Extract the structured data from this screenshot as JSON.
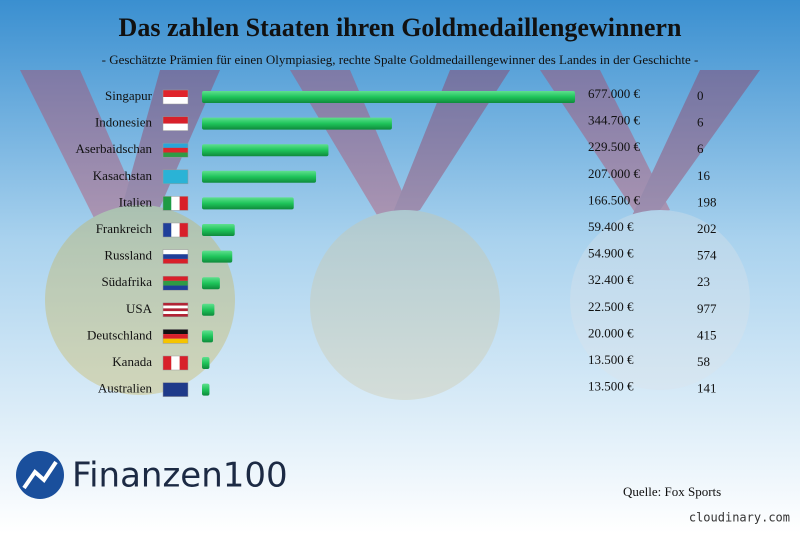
{
  "chart_data": {
    "type": "bar",
    "title": "Das zahlen Staaten ihren Goldmedaillengewinnern",
    "subtitle": "- Geschätzte Prämien für einen Olympiasieg, rechte Spalte Goldmedaillengewinner des Landes in der Geschichte -",
    "categories": [
      "Singapur",
      "Indonesien",
      "Aserbaidschan",
      "Kasachstan",
      "Italien",
      "Frankreich",
      "Russland",
      "Südafrika",
      "USA",
      "Deutschland",
      "Kanada",
      "Australien"
    ],
    "values": [
      677000,
      344700,
      229500,
      207000,
      166500,
      59400,
      54900,
      32400,
      22500,
      20000,
      13500,
      13500
    ],
    "value_labels": [
      "677.000 €",
      "344.700 €",
      "229.500 €",
      "207.000 €",
      "166.500 €",
      "59.400 €",
      "54.900 €",
      "32.400 €",
      "22.500 €",
      "20.000 €",
      "13.500 €",
      "13.500 €"
    ],
    "gold_medalists": [
      0,
      6,
      6,
      16,
      198,
      202,
      574,
      23,
      977,
      415,
      58,
      141
    ],
    "color": "#1ec45a",
    "source": "Quelle: Fox Sports",
    "logo": "Finanzen100",
    "watermark": "cloudinary.com"
  }
}
